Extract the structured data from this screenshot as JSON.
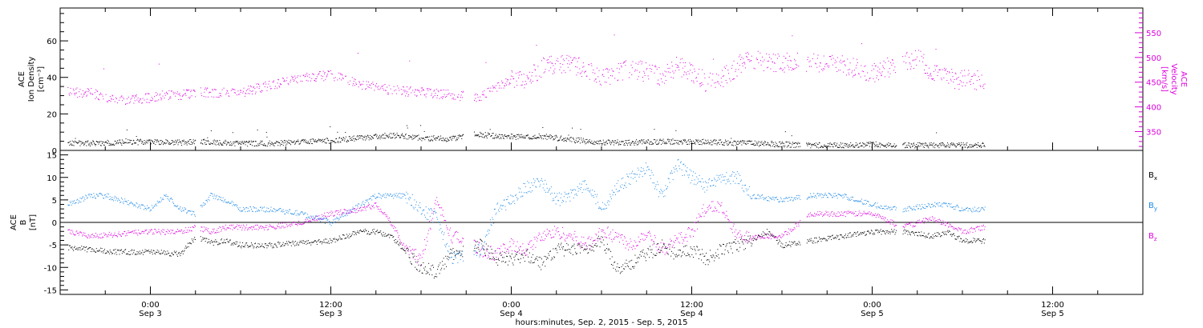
{
  "chart_data": [
    {
      "type": "scatter",
      "panel": "top",
      "ylabel_left": [
        "ACE",
        "Ion Density",
        "[cm⁻³]"
      ],
      "ylabel_right": [
        "ACE",
        "Velocity",
        "[km/s]"
      ],
      "ylim_left": [
        0,
        78
      ],
      "ylim_right": [
        312,
        600
      ],
      "left_ticks": [
        "0",
        "20",
        "40",
        "60"
      ],
      "left_tick_values": [
        0,
        20,
        40,
        60
      ],
      "right_ticks": [
        "350",
        "400",
        "450",
        "500",
        "550"
      ],
      "right_tick_values": [
        350,
        400,
        450,
        500,
        550
      ],
      "colors": {
        "density": "#000000",
        "velocity": "#dd00dd"
      },
      "series": [
        {
          "name": "Ion Density",
          "axis": "left",
          "x_hours": [
            -5.5,
            -4,
            -2,
            0,
            2,
            3.3,
            6,
            8,
            10,
            12,
            14,
            16,
            18,
            20,
            21.5,
            23,
            24.5,
            26,
            28,
            30,
            32,
            34,
            36,
            38,
            40,
            42,
            44,
            46,
            48,
            50,
            52,
            54,
            55.5
          ],
          "values": [
            4,
            4,
            4.5,
            5,
            4.5,
            5,
            4,
            4,
            5,
            5.5,
            7,
            8.5,
            7,
            6.5,
            9,
            8,
            7.5,
            8,
            6,
            4.5,
            4.5,
            5,
            5,
            4.5,
            4,
            3.5,
            3,
            3,
            3.5,
            3,
            3,
            3,
            3
          ]
        },
        {
          "name": "Velocity",
          "axis": "right",
          "x_hours": [
            -5.5,
            -4,
            -3,
            -2,
            -1,
            0,
            1,
            2,
            3,
            4,
            6,
            8,
            10,
            12,
            14,
            16,
            18,
            20,
            22,
            23,
            24,
            25,
            26,
            27,
            28,
            29,
            30,
            31,
            32,
            33,
            34,
            35,
            36,
            37,
            38,
            39,
            39.5,
            40,
            42,
            44,
            46,
            47,
            48,
            49,
            50,
            51,
            52,
            53,
            54,
            55.5
          ],
          "values": [
            430,
            430,
            420,
            415,
            415,
            420,
            425,
            425,
            430,
            430,
            430,
            445,
            460,
            465,
            445,
            435,
            430,
            425,
            420,
            440,
            455,
            460,
            480,
            490,
            485,
            480,
            460,
            470,
            480,
            470,
            460,
            485,
            470,
            450,
            460,
            480,
            500,
            495,
            490,
            490,
            485,
            480,
            470,
            480,
            490,
            500,
            470,
            460,
            455,
            455
          ]
        }
      ]
    },
    {
      "type": "scatter",
      "panel": "bottom",
      "ylabel_left": [
        "ACE",
        "B",
        "[nT]"
      ],
      "ylim": [
        -16,
        16
      ],
      "left_ticks": [
        "-15",
        "-10",
        "-5",
        "0",
        "5",
        "10",
        "15"
      ],
      "left_tick_values": [
        -15,
        -10,
        -5,
        0,
        5,
        10,
        15
      ],
      "zero_line": true,
      "legend": [
        "B",
        "B",
        "B"
      ],
      "legend_subscripts": [
        "x",
        "y",
        "z"
      ],
      "colors": {
        "bx": "#000000",
        "by": "#1e88e5",
        "bz": "#dd00dd"
      },
      "series": [
        {
          "name": "Bx",
          "x_hours": [
            -5.5,
            -4,
            -2,
            0,
            2,
            3,
            4,
            5,
            6,
            8,
            10,
            12,
            14,
            15,
            16,
            18,
            19,
            20,
            21,
            22,
            23,
            24,
            25,
            26,
            27,
            28,
            29,
            30,
            31,
            32,
            33,
            34,
            35,
            36,
            37,
            38,
            39,
            40,
            41,
            42,
            44,
            46,
            48,
            50,
            52,
            53,
            54,
            55.5
          ],
          "values": [
            -5.5,
            -6,
            -6.5,
            -6.5,
            -7,
            -3,
            -4.5,
            -4,
            -5,
            -5,
            -4.5,
            -4,
            -2,
            -2,
            -3,
            -10,
            -11,
            -7,
            -6,
            -5,
            -8,
            -8,
            -7,
            -9,
            -6,
            -6,
            -6,
            -4,
            -10,
            -9,
            -7,
            -5,
            -7,
            -6,
            -8,
            -6,
            -5,
            -4,
            -2,
            -5,
            -4,
            -3,
            -2,
            -2,
            -3,
            -2,
            -4,
            -4
          ]
        },
        {
          "name": "By",
          "x_hours": [
            -5.5,
            -4,
            -3,
            -2,
            0,
            1,
            2,
            3,
            4,
            5,
            6,
            8,
            10,
            12,
            13,
            14,
            15,
            16,
            17,
            18,
            19,
            20,
            21,
            22,
            23,
            24,
            25,
            26,
            27,
            28,
            29,
            30,
            31,
            32,
            33,
            34,
            35,
            36,
            37,
            38,
            39,
            40,
            42,
            44,
            46,
            48,
            50,
            52,
            53,
            54,
            55.5
          ],
          "values": [
            4,
            6,
            6,
            5,
            3,
            6,
            3,
            2,
            6,
            5,
            3,
            3,
            2,
            0,
            2,
            4,
            6,
            6,
            6,
            3,
            1,
            -8,
            -7,
            -6,
            3,
            5,
            8,
            9,
            5,
            6,
            9,
            3,
            8,
            10,
            12,
            6,
            13,
            10,
            8,
            10,
            10,
            6,
            5,
            6,
            6,
            4,
            3,
            4,
            4,
            3,
            3
          ]
        },
        {
          "name": "Bz",
          "x_hours": [
            -5.5,
            -4,
            -2,
            0,
            2,
            3,
            4,
            5,
            6,
            8,
            10,
            12,
            14,
            15,
            16,
            17,
            18,
            19,
            20,
            21,
            22,
            23,
            24,
            25,
            26,
            27,
            28,
            29,
            30,
            31,
            32,
            33,
            34,
            35,
            36,
            37,
            38,
            39,
            40,
            42,
            44,
            46,
            48,
            50,
            52,
            54,
            55.5
          ],
          "values": [
            -2,
            -3,
            -2.5,
            -2,
            -2,
            -1,
            -2,
            -1,
            -1,
            -1,
            0,
            2,
            3,
            4,
            0,
            -6,
            -8,
            5,
            -3,
            -4,
            -6,
            -7,
            -5,
            -6,
            -3,
            -2,
            -3,
            -5,
            -2,
            -3,
            -5,
            -2,
            -6,
            -4,
            -2,
            4,
            3,
            -3,
            -3,
            -3,
            2,
            2,
            2,
            -1,
            1,
            -2,
            -1
          ]
        }
      ]
    }
  ],
  "x_axis": {
    "tick_labels": [
      {
        "time": "0:00",
        "day": "Sep 3"
      },
      {
        "time": "12:00",
        "day": "Sep 3"
      },
      {
        "time": "0:00",
        "day": "Sep 4"
      },
      {
        "time": "12:00",
        "day": "Sep 4"
      },
      {
        "time": "0:00",
        "day": "Sep 5"
      },
      {
        "time": "12:00",
        "day": "Sep 5"
      }
    ],
    "tick_hours": [
      0,
      12,
      24,
      36,
      48,
      60
    ],
    "xlim_hours": [
      -6,
      66
    ],
    "xlabel": "hours:minutes, Sep.  2, 2015 - Sep.  5, 2015"
  }
}
